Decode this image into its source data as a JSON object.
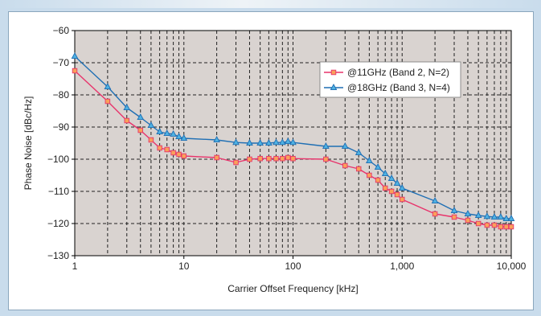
{
  "chart_data": {
    "type": "line",
    "x_scale": "log",
    "xlim": [
      1,
      10000
    ],
    "ylim": [
      -130,
      -60
    ],
    "grid": true,
    "legend_placement": "top-right",
    "xlabel": "Carrier Offset Frequency [kHz]",
    "ylabel": "Phase Noise [dBc/Hz]",
    "x_ticks": [
      1,
      10,
      100,
      1000,
      10000
    ],
    "x_tick_labels": [
      "1",
      "10",
      "100",
      "1,000",
      "10,000"
    ],
    "y_ticks": [
      -130,
      -120,
      -110,
      -100,
      -90,
      -80,
      -70,
      -60
    ],
    "y_tick_labels": [
      "−130",
      "−120",
      "−110",
      "−100",
      "−90",
      "−80",
      "−70",
      "−60"
    ],
    "series": [
      {
        "name": "@11GHz (Band 2, N=2)",
        "color": "#e8336b",
        "marker": "square",
        "marker_fill": "#f9a15a",
        "points": [
          [
            1,
            -72.5
          ],
          [
            2,
            -82
          ],
          [
            3,
            -88
          ],
          [
            4,
            -91
          ],
          [
            5,
            -94
          ],
          [
            6,
            -96.5
          ],
          [
            7,
            -97
          ],
          [
            8,
            -98
          ],
          [
            9,
            -98.5
          ],
          [
            10,
            -99
          ],
          [
            20,
            -99.5
          ],
          [
            30,
            -101
          ],
          [
            40,
            -100
          ],
          [
            50,
            -99.8
          ],
          [
            60,
            -99.8
          ],
          [
            70,
            -99.8
          ],
          [
            80,
            -99.8
          ],
          [
            90,
            -99.5
          ],
          [
            100,
            -99.8
          ],
          [
            200,
            -100
          ],
          [
            300,
            -102
          ],
          [
            400,
            -103
          ],
          [
            500,
            -105
          ],
          [
            600,
            -106.5
          ],
          [
            700,
            -109
          ],
          [
            800,
            -110
          ],
          [
            900,
            -111
          ],
          [
            1000,
            -112.5
          ],
          [
            2000,
            -117
          ],
          [
            3000,
            -118
          ],
          [
            4000,
            -119
          ],
          [
            5000,
            -120
          ],
          [
            6000,
            -120.5
          ],
          [
            7000,
            -120.5
          ],
          [
            8000,
            -121
          ],
          [
            9000,
            -121
          ],
          [
            10000,
            -121
          ]
        ]
      },
      {
        "name": "@18GHz (Band 3, N=4)",
        "color": "#1f6fb4",
        "marker": "triangle",
        "marker_fill": "#4fb2e2",
        "points": [
          [
            1,
            -68
          ],
          [
            2,
            -77.5
          ],
          [
            3,
            -84
          ],
          [
            4,
            -87
          ],
          [
            5,
            -89.5
          ],
          [
            6,
            -91.5
          ],
          [
            7,
            -92
          ],
          [
            8,
            -92.2
          ],
          [
            9,
            -93
          ],
          [
            10,
            -93.5
          ],
          [
            20,
            -94
          ],
          [
            30,
            -94.8
          ],
          [
            40,
            -95
          ],
          [
            50,
            -95
          ],
          [
            60,
            -95
          ],
          [
            70,
            -94.8
          ],
          [
            80,
            -94.8
          ],
          [
            90,
            -94.5
          ],
          [
            100,
            -94.8
          ],
          [
            200,
            -96
          ],
          [
            300,
            -96
          ],
          [
            400,
            -98
          ],
          [
            500,
            -100.5
          ],
          [
            600,
            -102.5
          ],
          [
            700,
            -104.5
          ],
          [
            800,
            -106
          ],
          [
            900,
            -107.5
          ],
          [
            1000,
            -109
          ],
          [
            2000,
            -113
          ],
          [
            3000,
            -116
          ],
          [
            4000,
            -117
          ],
          [
            5000,
            -117.5
          ],
          [
            6000,
            -117.8
          ],
          [
            7000,
            -118
          ],
          [
            8000,
            -118
          ],
          [
            9000,
            -118.5
          ],
          [
            10000,
            -118.5
          ]
        ]
      }
    ]
  },
  "style": {
    "plot_background": "#d9d3d0",
    "frame_background": "#c9dcec",
    "grid_color": "#222222"
  }
}
